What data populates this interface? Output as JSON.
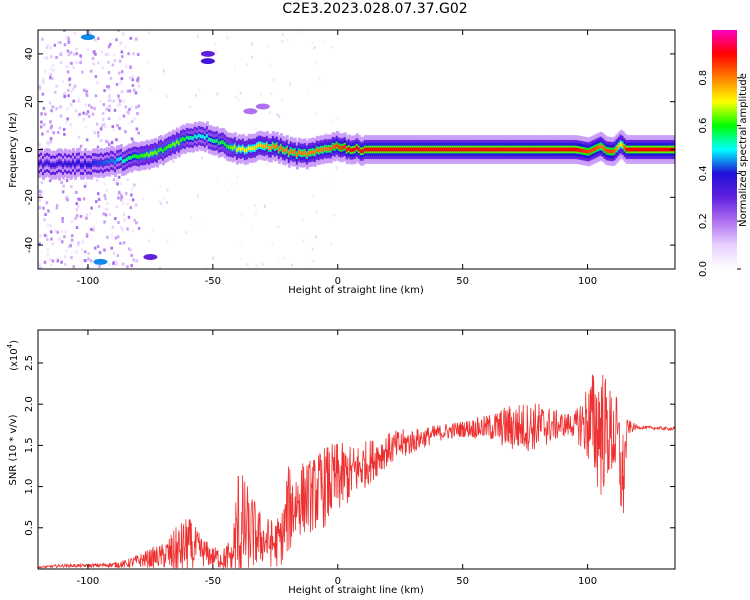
{
  "title": "C2E3.2023.028.07.37.G02",
  "chart_data": [
    {
      "type": "heatmap",
      "xlabel": "Height of straight line (km)",
      "ylabel": "Frequency (Hz)",
      "xlim": [
        -120,
        135
      ],
      "ylim": [
        -50,
        50
      ],
      "x_ticks": [
        -100,
        -50,
        0,
        50,
        100
      ],
      "y_ticks": [
        -40,
        -20,
        0,
        20,
        40
      ],
      "colorbar": {
        "label": "Normalized spectral amplitude",
        "range": [
          0,
          1
        ],
        "ticks": [
          "0.0",
          "0.2",
          "0.4",
          "0.6",
          "0.8"
        ],
        "colors": [
          "#ffffff",
          "#e8d0ff",
          "#b070f0",
          "#6020e0",
          "#2010d8",
          "#00ffff",
          "#00ff00",
          "#ffff00",
          "#ff8000",
          "#ff0000",
          "#ff00c0"
        ]
      },
      "ridge": {
        "x": [
          -120,
          -100,
          -90,
          -85,
          -80,
          -75,
          -70,
          -65,
          -60,
          -55,
          -50,
          -45,
          -40,
          -35,
          -30,
          -25,
          -20,
          -15,
          -10,
          -5,
          0,
          5,
          10,
          20,
          40,
          60,
          80,
          95,
          100,
          103,
          105,
          107,
          110,
          113,
          115,
          120,
          135
        ],
        "freq": [
          -6,
          -6,
          -5,
          -4,
          -3,
          -2,
          0,
          3,
          5,
          6,
          4,
          2,
          0,
          0.5,
          1.5,
          1,
          -1,
          -2,
          -1.5,
          0.5,
          1.5,
          0,
          0,
          0,
          0,
          0,
          0,
          0,
          -1,
          0.5,
          1.5,
          -0.5,
          -1,
          2.5,
          0,
          0,
          0
        ],
        "amp": [
          0.35,
          0.4,
          0.45,
          0.55,
          0.6,
          0.65,
          0.6,
          0.65,
          0.55,
          0.5,
          0.55,
          0.6,
          0.7,
          0.7,
          0.75,
          0.8,
          0.8,
          0.8,
          0.8,
          0.8,
          0.85,
          0.9,
          0.9,
          0.9,
          0.9,
          0.9,
          0.9,
          0.9,
          0.85,
          0.85,
          0.8,
          0.85,
          0.85,
          0.7,
          0.9,
          0.9,
          0.9
        ]
      }
    },
    {
      "type": "line",
      "xlabel": "Height of straight line (km)",
      "ylabel": "SNR (10 * v/v)",
      "y_multiplier": "(x10",
      "y_multiplier_exp": "4",
      "y_multiplier_close": ")",
      "xlim": [
        -120,
        135
      ],
      "ylim": [
        0,
        2.9
      ],
      "x_ticks": [
        -100,
        -50,
        0,
        50,
        100
      ],
      "y_ticks": [
        0.5,
        1.0,
        1.5,
        2.0,
        2.5
      ],
      "color": "#ee3030",
      "series": [
        {
          "name": "",
          "x": [
            -120,
            -110,
            -100,
            -90,
            -85,
            -80,
            -75,
            -70,
            -65,
            -60,
            -55,
            -50,
            -45,
            -42,
            -40,
            -35,
            -30,
            -25,
            -22,
            -20,
            -15,
            -10,
            -5,
            0,
            5,
            10,
            15,
            20,
            25,
            30,
            40,
            50,
            60,
            70,
            80,
            90,
            95,
            100,
            105,
            108,
            112,
            114,
            116,
            120,
            135
          ],
          "mean": [
            0.02,
            0.04,
            0.04,
            0.05,
            0.06,
            0.1,
            0.13,
            0.16,
            0.2,
            0.3,
            0.22,
            0.15,
            0.12,
            0.2,
            0.5,
            0.45,
            0.35,
            0.3,
            0.4,
            0.7,
            0.85,
            0.9,
            1.0,
            1.1,
            1.15,
            1.25,
            1.35,
            1.45,
            1.5,
            1.55,
            1.65,
            1.7,
            1.72,
            1.72,
            1.73,
            1.75,
            1.75,
            1.78,
            1.72,
            1.65,
            1.6,
            1.0,
            1.72,
            1.72,
            1.7
          ],
          "spread": [
            0.01,
            0.02,
            0.02,
            0.03,
            0.05,
            0.08,
            0.12,
            0.15,
            0.3,
            0.35,
            0.2,
            0.12,
            0.15,
            0.3,
            0.8,
            0.5,
            0.3,
            0.3,
            0.35,
            0.55,
            0.45,
            0.45,
            0.5,
            0.45,
            0.35,
            0.3,
            0.25,
            0.2,
            0.2,
            0.15,
            0.1,
            0.1,
            0.15,
            0.3,
            0.3,
            0.15,
            0.15,
            0.5,
            0.9,
            0.6,
            0.5,
            0.7,
            0.1,
            0.02,
            0.02
          ]
        }
      ]
    }
  ]
}
